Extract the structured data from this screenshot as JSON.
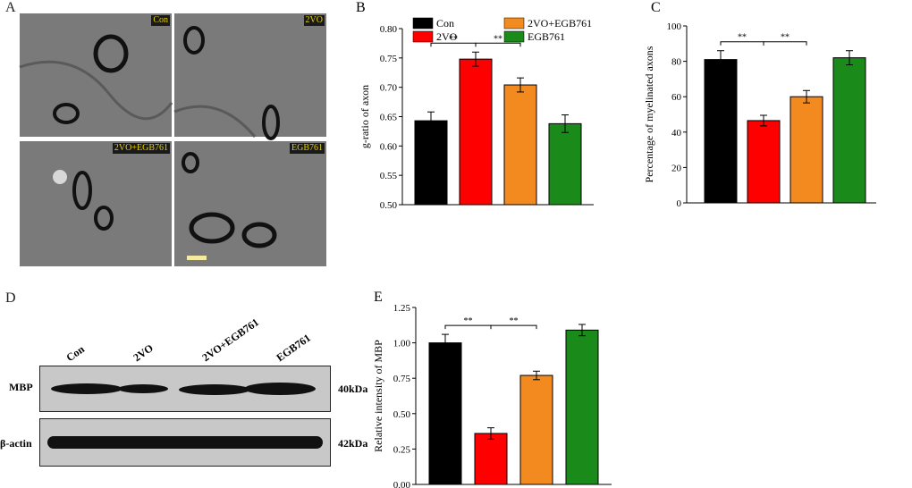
{
  "panels": {
    "A": {
      "label": "A",
      "images": [
        {
          "tag": "Con"
        },
        {
          "tag": "2VO"
        },
        {
          "tag": "2VO+EGB761"
        },
        {
          "tag": "EGB761"
        }
      ]
    },
    "D": {
      "label": "D",
      "lanes": [
        "Con",
        "2VO",
        "2VO+EGB761",
        "EGB761"
      ],
      "rows": [
        {
          "name": "MBP",
          "size": "40kDa"
        },
        {
          "name": "β-actin",
          "size": "42kDa"
        }
      ]
    }
  },
  "colors": {
    "Con": "#000000",
    "2VO": "#ff0000",
    "2VO+EGB761": "#f28a1f",
    "EGB761": "#1a8a1a"
  },
  "chart_data": [
    {
      "panel": "B",
      "type": "bar",
      "categories": [
        "Con",
        "2VO",
        "2VO+EGB761",
        "EGB761"
      ],
      "values": [
        0.643,
        0.748,
        0.704,
        0.638
      ],
      "errors": [
        0.015,
        0.012,
        0.012,
        0.015
      ],
      "ylabel": "g-ratio of axon",
      "ylim": [
        0.5,
        0.8
      ],
      "yticks": [
        "0.50",
        "0.55",
        "0.60",
        "0.65",
        "0.70",
        "0.75",
        "0.80"
      ],
      "legend": [
        "Con",
        "2VO+EGB761",
        "2VO",
        "EGB761"
      ],
      "legend_placement": "top",
      "significance": [
        {
          "from": 0,
          "to": 1,
          "label": "**"
        },
        {
          "from": 1,
          "to": 2,
          "label": "**"
        }
      ]
    },
    {
      "panel": "C",
      "type": "bar",
      "categories": [
        "Con",
        "2VO",
        "2VO+EGB761",
        "EGB761"
      ],
      "values": [
        81,
        46.5,
        60,
        82
      ],
      "errors": [
        5,
        3,
        3.5,
        4
      ],
      "ylabel": "Percentage of myelinated axons",
      "ylim": [
        0,
        100
      ],
      "yticks": [
        "0",
        "20",
        "40",
        "60",
        "80",
        "100"
      ],
      "significance": [
        {
          "from": 0,
          "to": 1,
          "label": "**"
        },
        {
          "from": 1,
          "to": 2,
          "label": "**"
        }
      ]
    },
    {
      "panel": "E",
      "type": "bar",
      "categories": [
        "Con",
        "2VO",
        "2VO+EGB761",
        "EGB761"
      ],
      "values": [
        1.0,
        0.36,
        0.77,
        1.09
      ],
      "errors": [
        0.06,
        0.04,
        0.03,
        0.04
      ],
      "ylabel": "Relative intensity of MBP",
      "ylim": [
        0,
        1.25
      ],
      "yticks": [
        "0.00",
        "0.25",
        "0.50",
        "0.75",
        "1.00",
        "1.25"
      ],
      "significance": [
        {
          "from": 0,
          "to": 1,
          "label": "**"
        },
        {
          "from": 1,
          "to": 2,
          "label": "**"
        }
      ]
    }
  ]
}
